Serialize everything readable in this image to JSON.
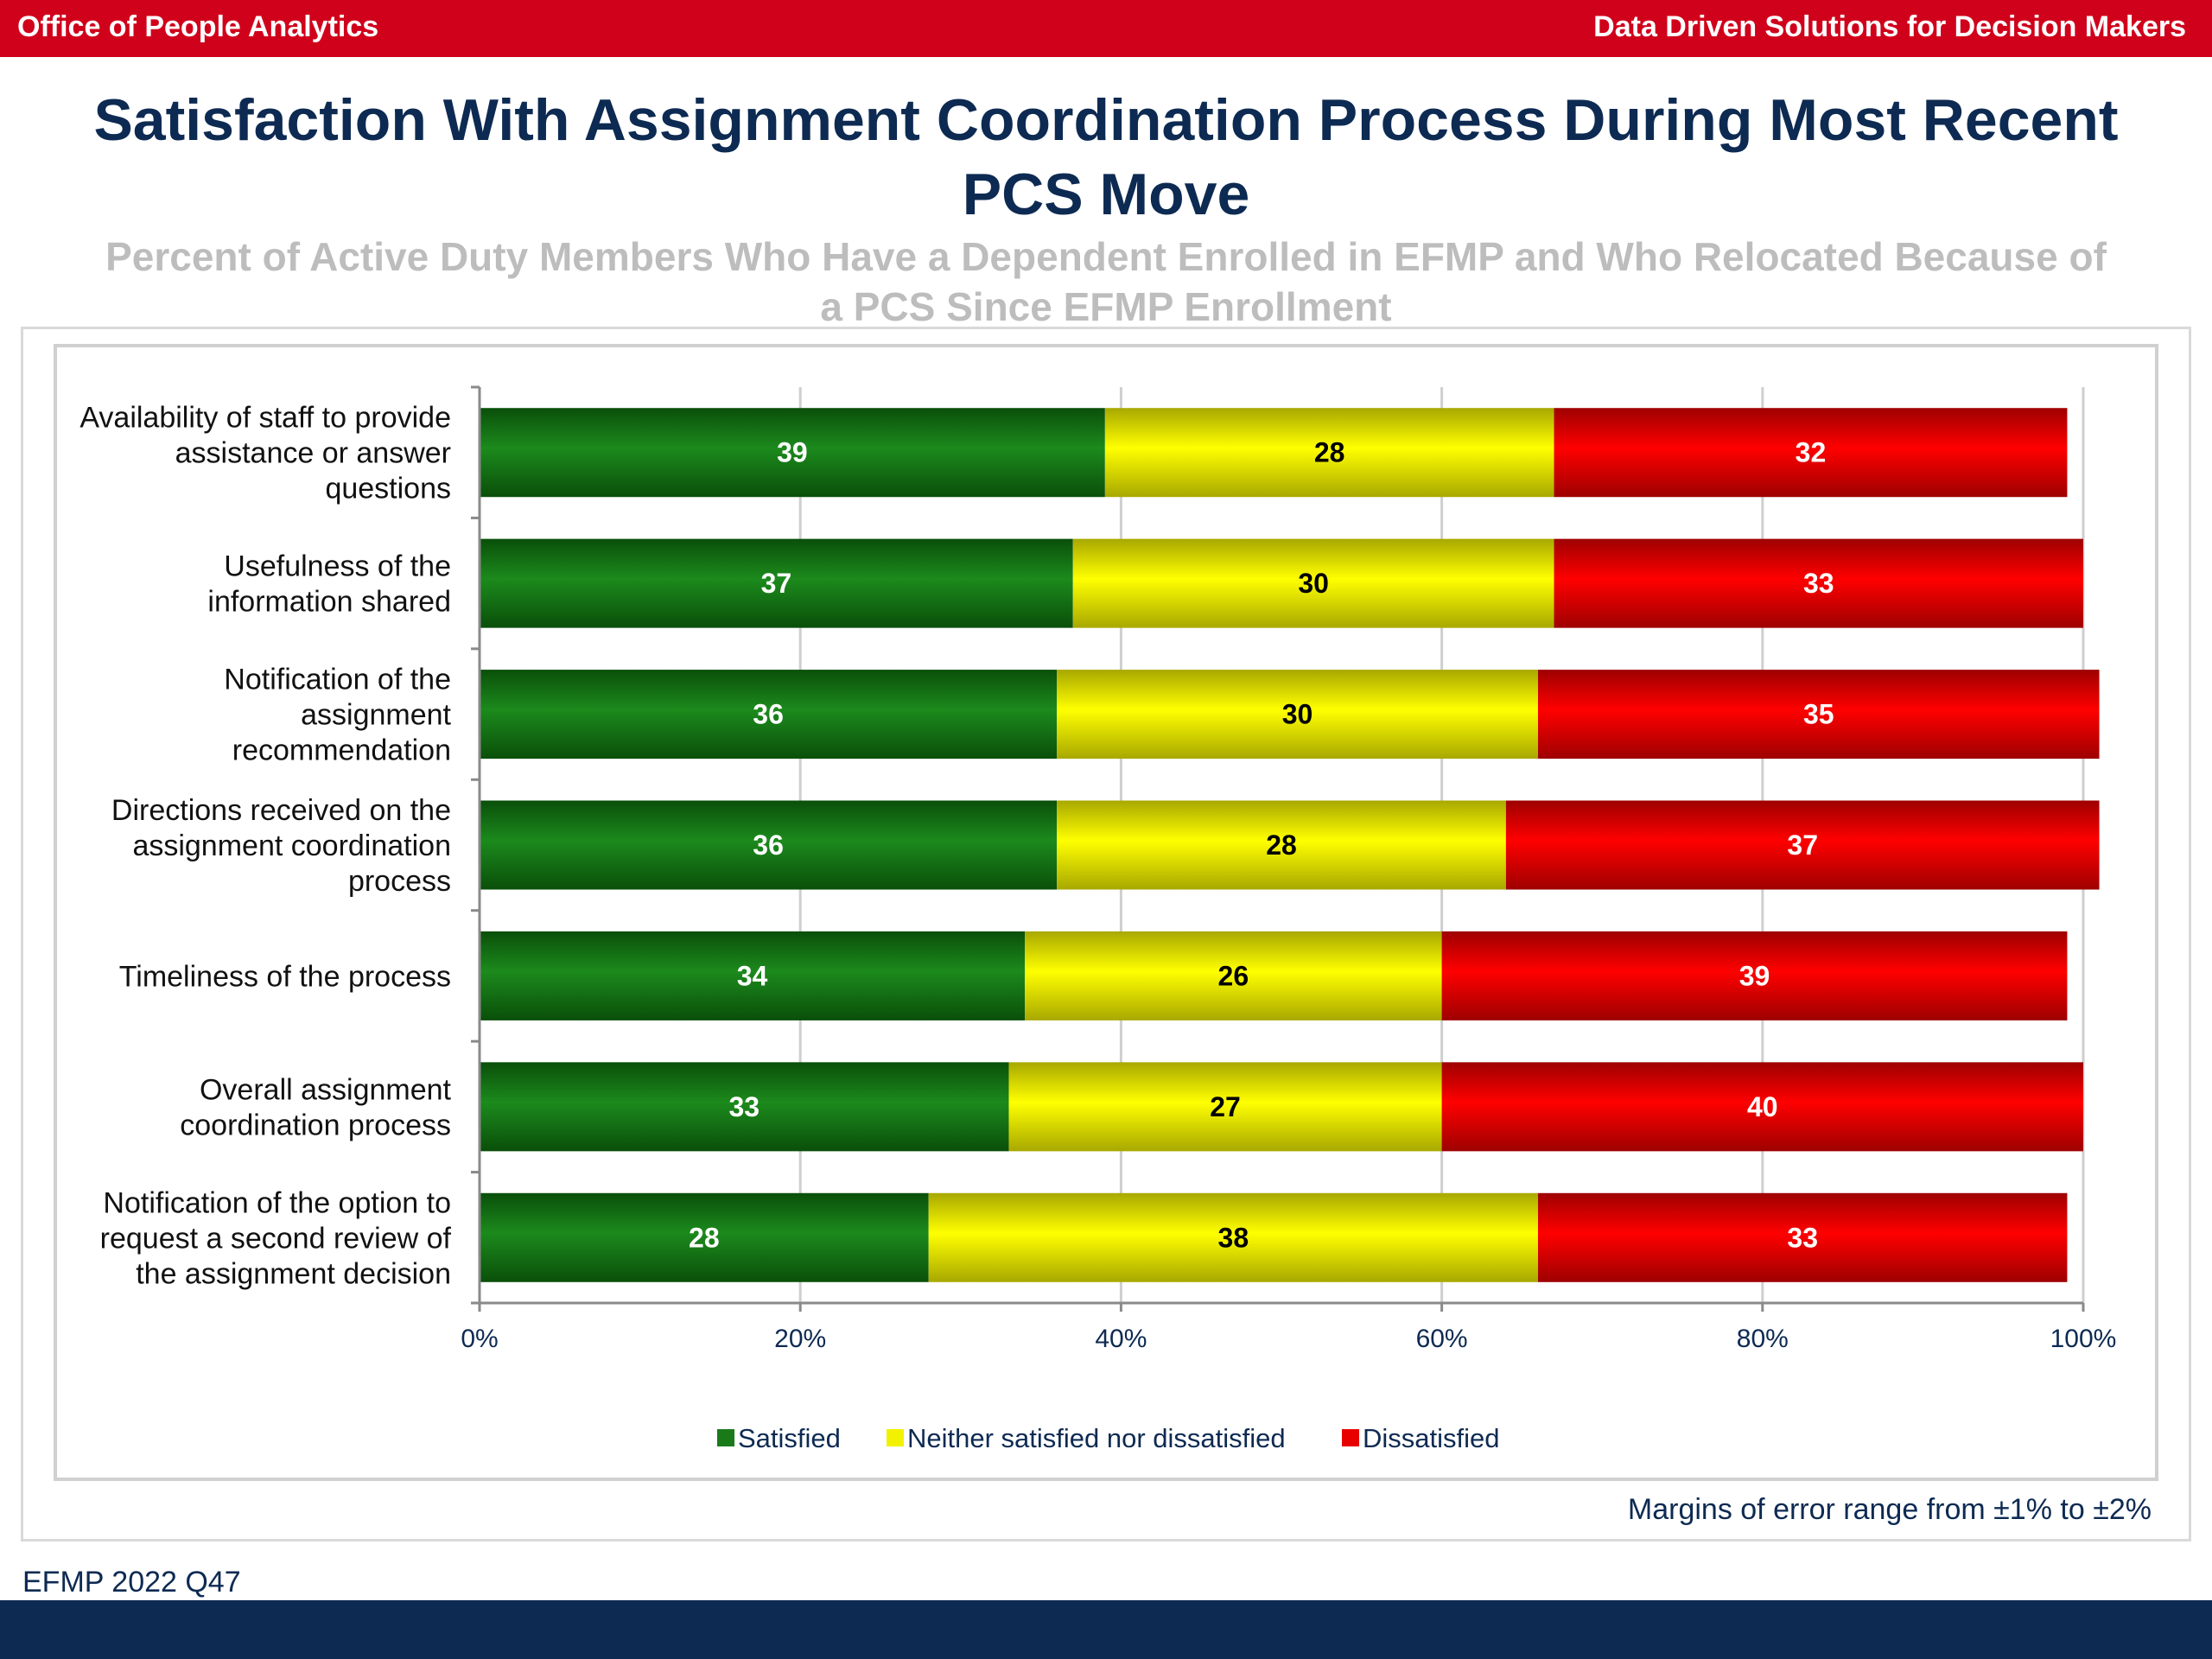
{
  "header": {
    "left": "Office of People Analytics",
    "right": "Data Driven Solutions for Decision Makers"
  },
  "title_lines": [
    "Satisfaction With Assignment Coordination Process During Most Recent",
    "PCS Move"
  ],
  "subtitle_lines": [
    "Percent of Active Duty Members Who Have a Dependent Enrolled in EFMP and Who Relocated Because of",
    "a PCS Since EFMP Enrollment"
  ],
  "chart_data": {
    "type": "bar",
    "orientation": "horizontal",
    "stacked": true,
    "categories": [
      [
        "Availability of staff to provide",
        "assistance or answer",
        "questions"
      ],
      [
        "Usefulness of the",
        "information shared"
      ],
      [
        "Notification of the",
        "assignment",
        "recommendation"
      ],
      [
        "Directions received on the",
        "assignment coordination",
        "process"
      ],
      [
        "Timeliness of the process"
      ],
      [
        "Overall assignment",
        "coordination process"
      ],
      [
        "Notification of the option to",
        "request a second review of",
        "the assignment decision"
      ]
    ],
    "series": [
      {
        "name": "Satisfied",
        "color": "#1a7a1a",
        "label_color": "#ffffff",
        "values": [
          39,
          37,
          36,
          36,
          34,
          33,
          28
        ]
      },
      {
        "name": "Neither satisfied nor dissatisfied",
        "color": "#f2f200",
        "label_color": "#000000",
        "values": [
          28,
          30,
          30,
          28,
          26,
          27,
          38
        ]
      },
      {
        "name": "Dissatisfied",
        "color": "#e80000",
        "label_color": "#ffffff",
        "values": [
          32,
          33,
          35,
          37,
          39,
          40,
          33
        ]
      }
    ],
    "xlim": [
      0,
      100
    ],
    "xticks": [
      "0%",
      "20%",
      "40%",
      "60%",
      "80%",
      "100%"
    ],
    "grid": true,
    "legend": "bottom"
  },
  "notes": {
    "margin": "Margins of error range from ±1% to ±2%",
    "source": "EFMP 2022 Q47"
  }
}
